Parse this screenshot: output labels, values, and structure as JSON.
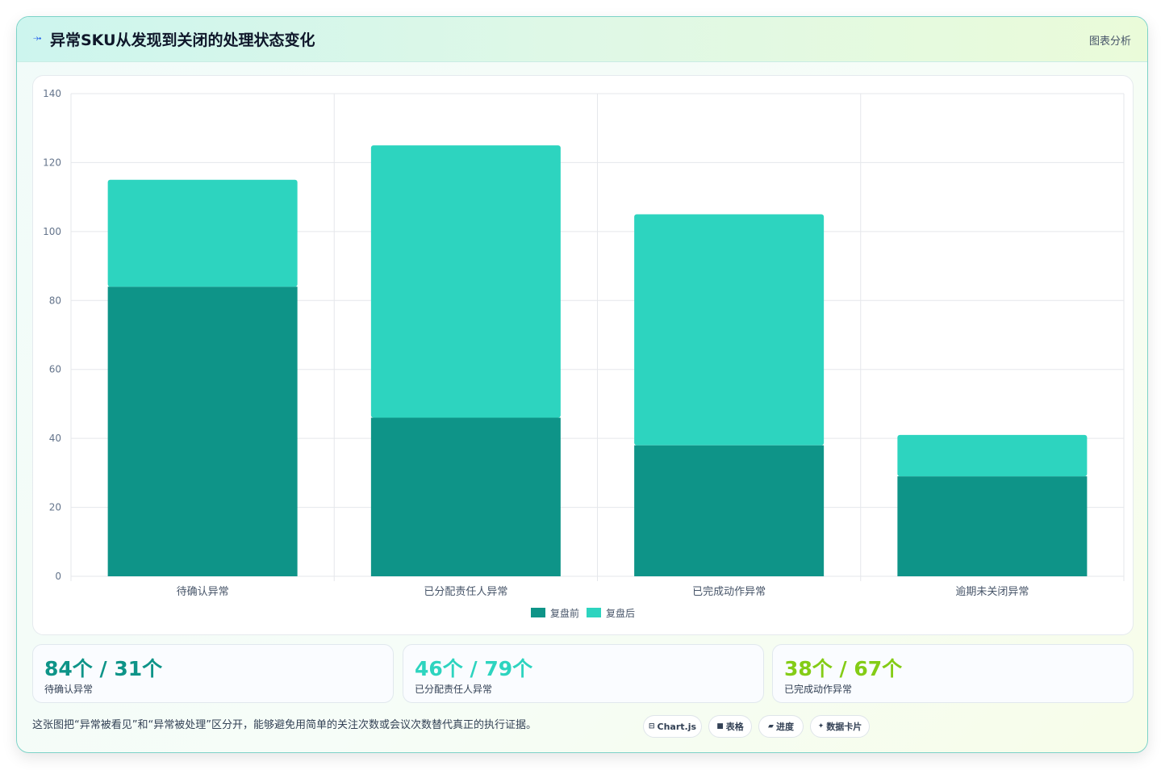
{
  "header": {
    "icon": "trend-icon",
    "title": "异常SKU从发现到关闭的处理状态变化",
    "right_label": "图表分析"
  },
  "colors": {
    "before": "#0e9488",
    "after": "#2dd4bf",
    "stat1": "#0e9488",
    "stat2": "#2dd4bf",
    "stat3": "#84cc16"
  },
  "chart_data": {
    "type": "bar",
    "stacked": true,
    "categories": [
      "待确认异常",
      "已分配责任人异常",
      "已完成动作异常",
      "逾期未关闭异常"
    ],
    "series": [
      {
        "name": "复盘前",
        "values": [
          84,
          46,
          38,
          29
        ]
      },
      {
        "name": "复盘后",
        "values": [
          31,
          79,
          67,
          12
        ]
      }
    ],
    "ylim": [
      0,
      140
    ],
    "yticks": [
      0,
      20,
      40,
      60,
      80,
      100,
      120,
      140
    ],
    "grid": true,
    "legend_position": "bottom"
  },
  "stats": [
    {
      "value": "84个 / 31个",
      "label": "待确认异常"
    },
    {
      "value": "46个 / 79个",
      "label": "已分配责任人异常"
    },
    {
      "value": "38个 / 67个",
      "label": "已完成动作异常"
    }
  ],
  "footer": {
    "text": "这张图把“异常被看见”和“异常被处理”区分开，能够避免用简单的关注次数或会议次数替代真正的执行证据。",
    "pills": [
      {
        "icon": "⊟",
        "label": "Chart.js"
      },
      {
        "icon": "■",
        "label": "表格"
      },
      {
        "icon": "▰",
        "label": "进度"
      },
      {
        "icon": "✦",
        "label": "数据卡片"
      }
    ]
  }
}
